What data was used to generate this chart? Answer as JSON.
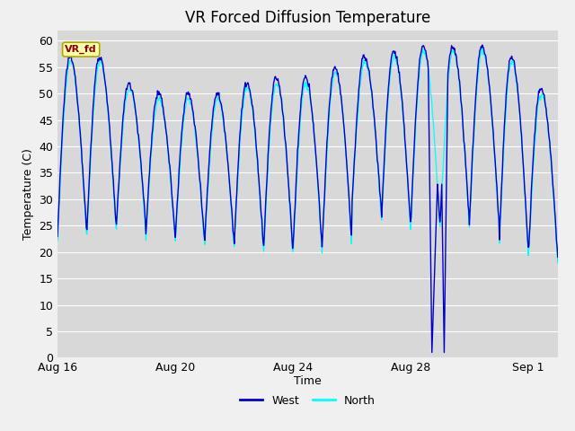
{
  "title": "VR Forced Diffusion Temperature",
  "ylabel": "Temperature (C)",
  "xlabel": "Time",
  "ylim": [
    0,
    62
  ],
  "yticks": [
    0,
    5,
    10,
    15,
    20,
    25,
    30,
    35,
    40,
    45,
    50,
    55,
    60
  ],
  "xtick_labels": [
    "Aug 16",
    "Aug 20",
    "Aug 24",
    "Aug 28",
    "Sep 1"
  ],
  "west_color": "#0000cc",
  "north_color": "#00ffff",
  "fig_bg_color": "#f0f0f0",
  "plot_bg_color": "#d8d8d8",
  "grid_color": "#ffffff",
  "label_box_facecolor": "#ffffaa",
  "label_box_edgecolor": "#aaaa00",
  "label_text": "VR_fd",
  "label_text_color": "#880000",
  "legend_west": "West",
  "legend_north": "North",
  "title_fontsize": 12,
  "axis_label_fontsize": 9,
  "tick_fontsize": 9
}
